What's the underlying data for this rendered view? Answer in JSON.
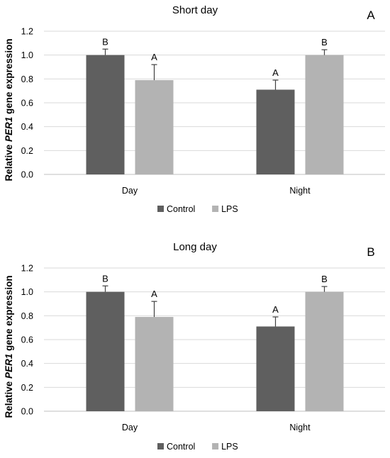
{
  "chart_data": [
    {
      "type": "bar",
      "title": "Short day",
      "panel_letter": "A",
      "ylabel": "Relative PER1 gene expression",
      "ylabel_parts": [
        "Relative ",
        "PER1",
        " gene expression"
      ],
      "ylim": [
        0,
        1.2
      ],
      "yticks": [
        "0.0",
        "0.2",
        "0.4",
        "0.6",
        "0.8",
        "1.0",
        "1.2"
      ],
      "grid": true,
      "legend_position": "bottom",
      "categories": [
        "Day",
        "Night"
      ],
      "series": [
        {
          "name": "Control",
          "color": "#5f5f5f",
          "values": [
            1.0,
            0.71
          ],
          "errors": [
            0.05,
            0.08
          ],
          "letters": [
            "B",
            "A"
          ]
        },
        {
          "name": "LPS",
          "color": "#b3b3b3",
          "values": [
            0.79,
            1.0
          ],
          "errors": [
            0.13,
            0.045
          ],
          "letters": [
            "A",
            "B"
          ]
        }
      ]
    },
    {
      "type": "bar",
      "title": "Long day",
      "panel_letter": "B",
      "ylabel": "Relative PER1 gene expression",
      "ylabel_parts": [
        "Relative ",
        "PER1",
        " gene expression"
      ],
      "ylim": [
        0,
        1.2
      ],
      "yticks": [
        "0.0",
        "0.2",
        "0.4",
        "0.6",
        "0.8",
        "1.0",
        "1.2"
      ],
      "grid": true,
      "legend_position": "bottom",
      "categories": [
        "Day",
        "Night"
      ],
      "series": [
        {
          "name": "Control",
          "color": "#5f5f5f",
          "values": [
            1.0,
            0.71
          ],
          "errors": [
            0.05,
            0.08
          ],
          "letters": [
            "B",
            "A"
          ]
        },
        {
          "name": "LPS",
          "color": "#b3b3b3",
          "values": [
            0.79,
            1.0
          ],
          "errors": [
            0.13,
            0.045
          ],
          "letters": [
            "A",
            "B"
          ]
        }
      ]
    }
  ]
}
